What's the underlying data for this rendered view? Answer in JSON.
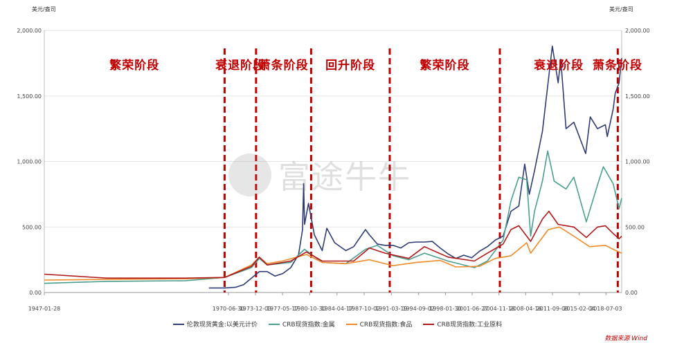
{
  "units": {
    "left": "美元/盎司",
    "right": "美元/盎司"
  },
  "watermark": {
    "text": "富途牛牛"
  },
  "source": "数据来源 Wind",
  "colors": {
    "gold": "#2e3a75",
    "metals": "#4a9e8e",
    "food": "#f08a28",
    "industrial": "#b01818",
    "phase_line": "#c00000"
  },
  "phases": [
    {
      "label": "繁荣阶段"
    },
    {
      "label": "衰退阶段"
    },
    {
      "label": "萧条阶段"
    },
    {
      "label": "回升阶段"
    },
    {
      "label": "繁荣阶段"
    },
    {
      "label": "衰退阶段"
    },
    {
      "label": "萧条阶段"
    }
  ],
  "chart_data": {
    "type": "line",
    "x_range": [
      "1947-01-28",
      "2020-06-30"
    ],
    "ylim": [
      0,
      2000
    ],
    "y_ticks": [
      "0.00",
      "500.00",
      "1,000.00",
      "1,500.00",
      "2,000.00"
    ],
    "x_tick_labels": [
      "1947-01-28",
      "1970-06-30",
      "1973-12-03",
      "1977-05-17",
      "1980-10-30",
      "1984-04-17",
      "1987-10-02",
      "1991-03-19",
      "1994-09-02",
      "1998-01-30",
      "2001-06-27",
      "2004-11-18",
      "2008-04-16",
      "2011-09-08",
      "2015-02-04",
      "2018-07-03"
    ],
    "phase_boundaries": [
      "1970-01-01",
      "1974-01-01",
      "1981-01-01",
      "1991-01-01",
      "2005-01-01",
      "2020-01-01"
    ],
    "legend_position": "bottom",
    "series": [
      {
        "name": "伦敦现货黄金:以美元计价",
        "color_key": "gold",
        "points": [
          [
            "1968-01-01",
            35
          ],
          [
            "1970-01-01",
            35
          ],
          [
            "1971-06-01",
            40
          ],
          [
            "1972-06-01",
            60
          ],
          [
            "1973-06-01",
            110
          ],
          [
            "1974-06-01",
            160
          ],
          [
            "1975-06-01",
            160
          ],
          [
            "1976-06-01",
            125
          ],
          [
            "1977-06-01",
            145
          ],
          [
            "1978-06-01",
            190
          ],
          [
            "1979-06-01",
            290
          ],
          [
            "1979-12-01",
            480
          ],
          [
            "1980-01-21",
            830
          ],
          [
            "1980-03-01",
            520
          ],
          [
            "1980-09-01",
            680
          ],
          [
            "1981-06-01",
            440
          ],
          [
            "1982-06-01",
            320
          ],
          [
            "1983-01-01",
            490
          ],
          [
            "1984-01-01",
            380
          ],
          [
            "1985-06-01",
            320
          ],
          [
            "1986-06-01",
            350
          ],
          [
            "1987-12-01",
            480
          ],
          [
            "1988-06-01",
            440
          ],
          [
            "1989-06-01",
            370
          ],
          [
            "1990-06-01",
            360
          ],
          [
            "1991-06-01",
            360
          ],
          [
            "1992-06-01",
            340
          ],
          [
            "1993-06-01",
            380
          ],
          [
            "1994-06-01",
            385
          ],
          [
            "1995-06-01",
            385
          ],
          [
            "1996-06-01",
            390
          ],
          [
            "1997-06-01",
            340
          ],
          [
            "1998-06-01",
            295
          ],
          [
            "1999-06-01",
            260
          ],
          [
            "2000-06-01",
            285
          ],
          [
            "2001-06-01",
            265
          ],
          [
            "2002-06-01",
            315
          ],
          [
            "2003-06-01",
            350
          ],
          [
            "2004-06-01",
            400
          ],
          [
            "2005-06-01",
            430
          ],
          [
            "2006-06-01",
            620
          ],
          [
            "2007-06-01",
            660
          ],
          [
            "2008-03-01",
            980
          ],
          [
            "2008-10-01",
            750
          ],
          [
            "2009-06-01",
            930
          ],
          [
            "2010-06-01",
            1230
          ],
          [
            "2011-09-05",
            1880
          ],
          [
            "2012-06-01",
            1600
          ],
          [
            "2012-10-01",
            1780
          ],
          [
            "2013-06-01",
            1250
          ],
          [
            "2014-06-01",
            1300
          ],
          [
            "2015-12-01",
            1060
          ],
          [
            "2016-07-01",
            1340
          ],
          [
            "2017-06-01",
            1250
          ],
          [
            "2018-06-01",
            1280
          ],
          [
            "2018-09-01",
            1190
          ],
          [
            "2019-06-01",
            1400
          ],
          [
            "2019-09-01",
            1520
          ],
          [
            "2020-03-01",
            1600
          ],
          [
            "2020-06-30",
            1790
          ]
        ]
      },
      {
        "name": "CRB现货指数:金属",
        "color_key": "metals",
        "points": [
          [
            "1947-01-28",
            70
          ],
          [
            "1955-01-01",
            85
          ],
          [
            "1965-01-01",
            90
          ],
          [
            "1970-01-01",
            115
          ],
          [
            "1973-06-01",
            190
          ],
          [
            "1974-06-01",
            260
          ],
          [
            "1975-06-01",
            210
          ],
          [
            "1978-06-01",
            230
          ],
          [
            "1980-03-01",
            330
          ],
          [
            "1982-06-01",
            230
          ],
          [
            "1985-06-01",
            220
          ],
          [
            "1987-12-01",
            330
          ],
          [
            "1989-06-01",
            360
          ],
          [
            "1991-06-01",
            280
          ],
          [
            "1993-06-01",
            250
          ],
          [
            "1995-06-01",
            300
          ],
          [
            "1998-06-01",
            240
          ],
          [
            "2001-10-01",
            190
          ],
          [
            "2003-06-01",
            240
          ],
          [
            "2005-06-01",
            400
          ],
          [
            "2006-06-01",
            700
          ],
          [
            "2007-06-01",
            880
          ],
          [
            "2008-06-01",
            860
          ],
          [
            "2008-12-01",
            430
          ],
          [
            "2009-06-01",
            620
          ],
          [
            "2010-06-01",
            850
          ],
          [
            "2011-02-01",
            1080
          ],
          [
            "2011-12-01",
            850
          ],
          [
            "2013-06-01",
            790
          ],
          [
            "2014-06-01",
            880
          ],
          [
            "2016-01-01",
            540
          ],
          [
            "2017-06-01",
            820
          ],
          [
            "2018-03-01",
            960
          ],
          [
            "2019-06-01",
            830
          ],
          [
            "2020-03-01",
            640
          ],
          [
            "2020-06-30",
            720
          ]
        ]
      },
      {
        "name": "CRB现货指数:食品",
        "color_key": "food",
        "points": [
          [
            "1947-01-28",
            95
          ],
          [
            "1955-01-01",
            100
          ],
          [
            "1965-01-01",
            105
          ],
          [
            "1970-01-01",
            115
          ],
          [
            "1973-06-01",
            210
          ],
          [
            "1974-06-01",
            270
          ],
          [
            "1975-06-01",
            220
          ],
          [
            "1977-05-01",
            240
          ],
          [
            "1980-06-01",
            290
          ],
          [
            "1982-06-01",
            230
          ],
          [
            "1985-06-01",
            220
          ],
          [
            "1988-06-01",
            250
          ],
          [
            "1991-06-01",
            205
          ],
          [
            "1994-06-01",
            230
          ],
          [
            "1997-06-01",
            245
          ],
          [
            "1999-06-01",
            195
          ],
          [
            "2002-06-01",
            200
          ],
          [
            "2004-06-01",
            260
          ],
          [
            "2006-06-01",
            280
          ],
          [
            "2008-06-01",
            380
          ],
          [
            "2008-12-01",
            300
          ],
          [
            "2011-03-01",
            480
          ],
          [
            "2012-08-01",
            500
          ],
          [
            "2014-06-01",
            430
          ],
          [
            "2016-06-01",
            350
          ],
          [
            "2018-06-01",
            360
          ],
          [
            "2019-06-01",
            330
          ],
          [
            "2020-06-30",
            300
          ]
        ]
      },
      {
        "name": "CRB现货指数:工业原料",
        "color_key": "industrial",
        "points": [
          [
            "1947-01-28",
            140
          ],
          [
            "1955-01-01",
            110
          ],
          [
            "1965-01-01",
            110
          ],
          [
            "1970-01-01",
            115
          ],
          [
            "1973-06-01",
            200
          ],
          [
            "1974-06-01",
            270
          ],
          [
            "1975-06-01",
            210
          ],
          [
            "1978-06-01",
            240
          ],
          [
            "1980-06-01",
            310
          ],
          [
            "1982-06-01",
            240
          ],
          [
            "1986-06-01",
            240
          ],
          [
            "1988-06-01",
            340
          ],
          [
            "1990-06-01",
            300
          ],
          [
            "1993-06-01",
            260
          ],
          [
            "1995-06-01",
            350
          ],
          [
            "1998-06-01",
            270
          ],
          [
            "2001-10-01",
            240
          ],
          [
            "2003-06-01",
            300
          ],
          [
            "2005-06-01",
            370
          ],
          [
            "2006-06-01",
            480
          ],
          [
            "2007-06-01",
            510
          ],
          [
            "2008-12-01",
            390
          ],
          [
            "2010-06-01",
            560
          ],
          [
            "2011-04-01",
            620
          ],
          [
            "2012-06-01",
            520
          ],
          [
            "2014-06-01",
            500
          ],
          [
            "2016-01-01",
            420
          ],
          [
            "2017-06-01",
            500
          ],
          [
            "2018-06-01",
            510
          ],
          [
            "2019-06-01",
            450
          ],
          [
            "2020-03-01",
            410
          ],
          [
            "2020-06-30",
            430
          ]
        ]
      }
    ]
  }
}
